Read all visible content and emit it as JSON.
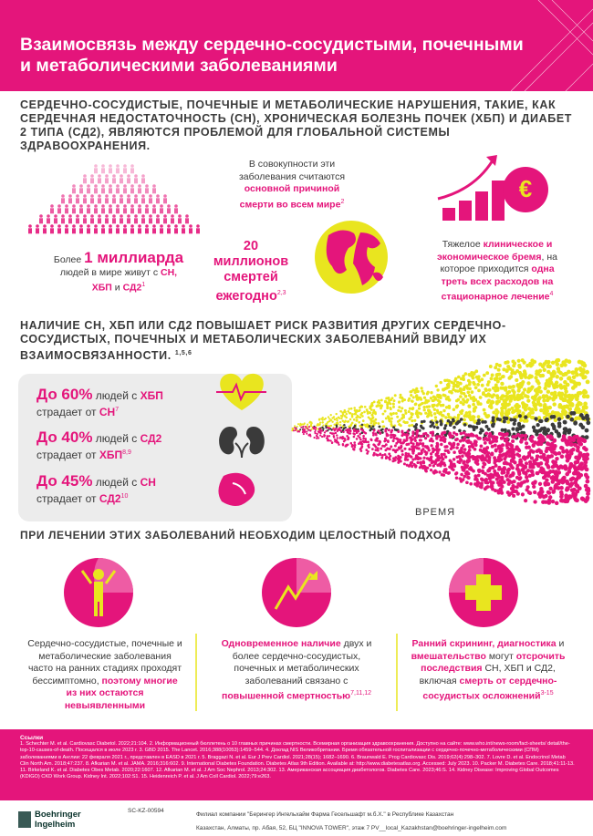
{
  "header": {
    "title": "Взаимосвязь между сердечно-сосудистыми, почечными и метаболическими заболеваниями"
  },
  "intro": "СЕРДЕЧНО-СОСУДИСТЫЕ, ПОЧЕЧНЫЕ И МЕТАБОЛИЧЕСКИЕ НАРУШЕНИЯ, ТАКИЕ, КАК СЕРДЕЧНАЯ НЕДОСТАТОЧНОСТЬ (СН), ХРОНИЧЕСКАЯ БОЛЕЗНЬ ПОЧЕК (ХБП) И ДИАБЕТ 2 ТИПА (СД2), ЯВЛЯЮТСЯ ПРОБЛЕМОЙ ДЛЯ ГЛОБАЛЬНОЙ СИСТЕМЫ ЗДРАВООХРАНЕНИЯ.",
  "stats": [
    [
      "Более ",
      "1 миллиарда",
      " людей в мире живут с ",
      "СН, ХБП",
      " и ",
      "СД2",
      "1"
    ],
    [
      "В совокупности эти заболевания считаются ",
      "основной причиной смерти во всем мире",
      "2"
    ],
    [
      "20 миллионов смертей ежегодно",
      "2,3"
    ],
    [
      "Тяжелое ",
      "клиническое и экономическое бремя",
      ", на которое приходится ",
      "одна треть всех расходов на стационарное лечение",
      "4"
    ]
  ],
  "icons": {
    "euro": "€"
  },
  "risk_heading": [
    "НАЛИЧИЕ СН, ХБП ИЛИ СД2 ПОВЫШАЕТ РИСК РАЗВИТИЯ ДРУГИХ СЕРДЕЧНО-СОСУДИСТЫХ, ПОЧЕЧНЫХ И МЕТАБОЛИЧЕСКИХ ЗАБОЛЕВАНИЙ ВВИДУ ИХ ВЗАИМОСВЯЗАННОСТИ.",
    "1,5,6"
  ],
  "risks": [
    [
      "До 60%",
      " людей с ",
      "ХБП",
      " страдает от ",
      "СН",
      "7"
    ],
    [
      "До 40%",
      " людей с ",
      "СД2",
      " страдает от ",
      "ХБП",
      "8,9"
    ],
    [
      "До 45%",
      " людей с ",
      "СН",
      " страдает от ",
      "СД2",
      "10"
    ]
  ],
  "time_label": "ВРЕМЯ",
  "approach_heading": "ПРИ ЛЕЧЕНИИ ЭТИХ ЗАБОЛЕВАНИЙ НЕОБХОДИМ ЦЕЛОСТНЫЙ ПОДХОД",
  "columns": [
    [
      "Сердечно-сосудистые, почечные и метаболические заболевания часто на ранних стадиях проходят бессимптомно, ",
      "поэтому многие из них остаются невыявленными"
    ],
    [
      "Одновременное наличие",
      " двух и более сердечно-сосудистых, почечных и метаболических заболеваний связано с ",
      "повышенной смертностью",
      "7,11,12"
    ],
    [
      "Ранний скрининг, диагностика",
      " и ",
      "вмешательство",
      " могут ",
      "отсрочить последствия",
      " СН, ХБП и СД2, включая ",
      "смерть от сердечно-сосудистых осложнений",
      "3-15"
    ]
  ],
  "references": {
    "title": "Ссылки",
    "text": "1. Schechter M. et al. Cardiovasc Diabetol. 2022;21:104. 2. Информационный бюллетень о 10 главных причинах смертности. Всемирная организация здравоохранения. Доступно на сайте: www.who.int/news-room/fact-sheets/ detail/the-top-10-causes-of-death. Посещался в июле 2023 г. 3. GBD 2015. The Lancet. 2016;388(10053):1459–544. 4. Доклад NIS Великобритании. Бремя обязательной госпитализации с сердечно-почечно-метаболическими (СПМ) заболеваниями в Англии: 22 февраля 2021 г., представлен в EASD в 2021 г. 5. Braggazi N. et al. Eur J Prev Cardiol. 2021;28(15); 1682–1690. 6. Braunwald E. Prog Cardiovasc Dis. 2019;62(4):298–302. 7. Lovre D. et al. Endocrinol Metab Clin North Am. 2018;47:237. 8. Afkarian M. et al. JAMA. 2016;316:602. 9. International Diabetes Foundation. Diabetes Atlas 9th Edition. Available at: http://www.diabetesatlas.org. Accessed: July 2023. 10. Packer M. Diabetes Care. 2018;41:11-13. 11. Birkeland K. et al. Diabetes Obes Metab. 2020;22:1607. 12. Afkarian M. et al. J Am Soc Nephrol. 2013;24:302. 13. Американская ассоциация диабетологов. Diabetes Care. 2023;46:S. 14. Kidney Disease: Improving Global Outcomes (KDIGO) CKD Work Group. Kidney Int. 2022;102:S1. 15. Heidenreich P. et al. J Am Coll Cardiol. 2022;79:e263."
  },
  "footer": {
    "code": "SC-KZ-00594",
    "logo": [
      "Boehringer",
      "Ingelheim"
    ],
    "lines": [
      "Филиал компании \"Берингер Ингельхайм Фарма Гесельшафт м.б.Х.\" в Республике Казахстан",
      "Казахстан, Алматы, пр. Абая, 52, БЦ \"INNOVA TOWER\", этаж 7 PV__local_Kazakhstan@boehringer-ingelheim.com"
    ]
  }
}
